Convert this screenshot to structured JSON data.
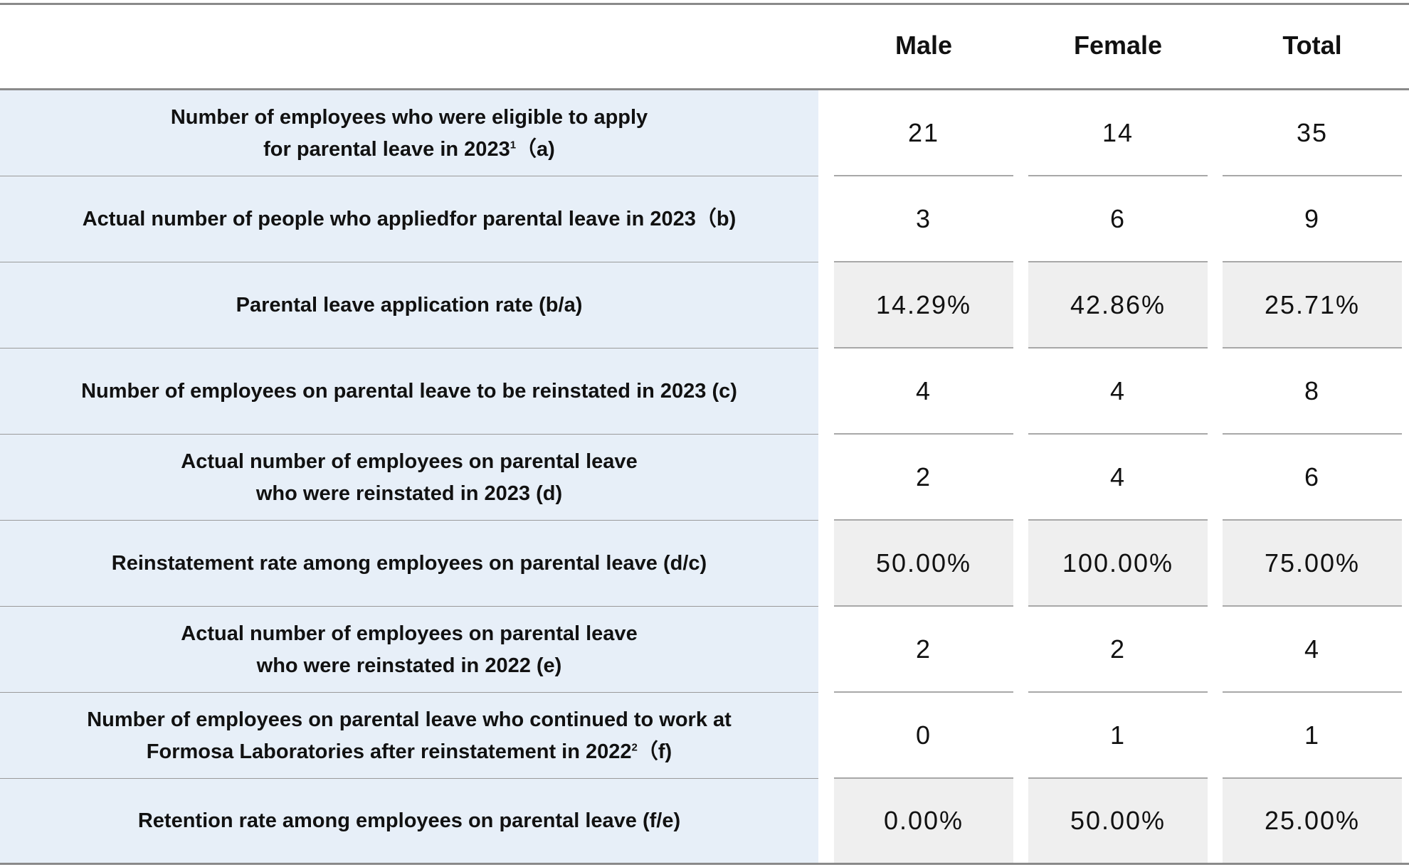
{
  "headers": {
    "male": "Male",
    "female": "Female",
    "total": "Total"
  },
  "rows": [
    {
      "label": "Number of employees who were eligible to apply\nfor parental leave in 2023",
      "footnote": "1",
      "label_suffix": "（a)",
      "male": "21",
      "female": "14",
      "total": "35",
      "shaded": false
    },
    {
      "label": "Actual number of people who appliedfor parental leave in 2023（b)",
      "male": "3",
      "female": "6",
      "total": "9",
      "shaded": false
    },
    {
      "label": "Parental leave application rate (b/a)",
      "male": "14.29%",
      "female": "42.86%",
      "total": "25.71%",
      "shaded": true
    },
    {
      "label": "Number of employees on parental leave to be reinstated in 2023 (c)",
      "male": "4",
      "female": "4",
      "total": "8",
      "shaded": false
    },
    {
      "label": "Actual number of employees on parental leave\nwho were reinstated in 2023 (d)",
      "male": "2",
      "female": "4",
      "total": "6",
      "shaded": false
    },
    {
      "label": "Reinstatement rate among employees on parental leave (d/c)",
      "male": "50.00%",
      "female": "100.00%",
      "total": "75.00%",
      "shaded": true
    },
    {
      "label": "Actual number of employees on parental leave\nwho were reinstated in 2022 (e)",
      "male": "2",
      "female": "2",
      "total": "4",
      "shaded": false
    },
    {
      "label": "Number of employees on parental leave who continued to work at\nFormosa Laboratories after reinstatement in 2022",
      "footnote": "2",
      "label_suffix": "（f)",
      "male": "0",
      "female": "1",
      "total": "1",
      "shaded": false
    },
    {
      "label": "Retention rate among employees on parental leave (f/e)",
      "male": "0.00%",
      "female": "50.00%",
      "total": "25.00%",
      "shaded": true
    }
  ]
}
